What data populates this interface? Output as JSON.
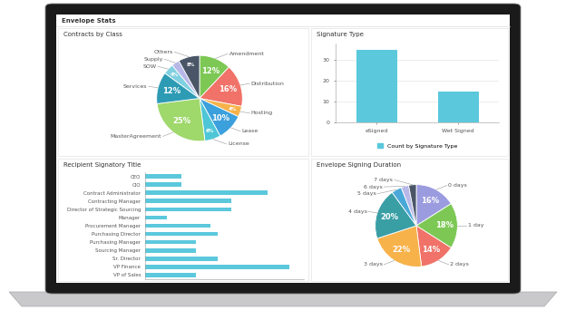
{
  "header": {
    "title": "Envelope Stats"
  },
  "chart_data": [
    {
      "type": "pie",
      "title": "Contracts by Class",
      "categories": [
        "Amendment",
        "Distribution",
        "Hosting",
        "Lease",
        "License",
        "MasterAgreement",
        "Services",
        "SOW",
        "Supply",
        "Others"
      ],
      "values": [
        12,
        16,
        4,
        10,
        6,
        25,
        12,
        4,
        3,
        8
      ],
      "value_labels": [
        "12%",
        "16%",
        "4%",
        "10%",
        "6%",
        "25%",
        "12%",
        "4%",
        null,
        "8%"
      ],
      "data_labels": true,
      "colors": [
        "#7dc855",
        "#f07268",
        "#f7b24a",
        "#3ca0dc",
        "#4ec6d6",
        "#9fd86b",
        "#2e9bb5",
        "#7fd0e0",
        "#b8b8e8",
        "#4a5568"
      ]
    },
    {
      "type": "bar",
      "title": "Signature Type",
      "categories": [
        "eSigned",
        "Wet Signed"
      ],
      "series": [
        {
          "name": "Count by Signature Type",
          "color": "#5bc8dc",
          "values": [
            35,
            15
          ]
        }
      ],
      "ylim": [
        0,
        38
      ],
      "yticks": [
        0,
        10,
        20,
        30
      ],
      "grid": true,
      "legend": "bottom"
    },
    {
      "type": "bar",
      "orientation": "horizontal",
      "title": "Recipient Signatory Title",
      "categories": [
        "CEO",
        "CIO",
        "Contract Administrator",
        "Contracting Manager",
        "Director of Strategic Sourcing",
        "Manager",
        "Procurement Manager",
        "Purchasing Director",
        "Purchasing Manager",
        "Sourcing Manager",
        "Sr. Director",
        "VP Finance",
        "VP of Sales"
      ],
      "values": [
        5,
        5,
        17,
        12,
        12,
        3,
        9,
        10,
        7,
        7,
        10,
        20,
        7
      ],
      "color": "#5bc8dc",
      "xlim": [
        0,
        22
      ],
      "tick_labels": "y"
    },
    {
      "type": "pie",
      "title": "Envelope Signing Duration",
      "categories": [
        "0 days",
        "1 day",
        "2 days",
        "3 days",
        "4 days",
        "5 days",
        "6 days",
        "7 days"
      ],
      "values": [
        16,
        18,
        14,
        22,
        20,
        4,
        3,
        3
      ],
      "value_labels": [
        "16%",
        "18%",
        "14%",
        "22%",
        "20%",
        null,
        null,
        null
      ],
      "data_labels": true,
      "colors": [
        "#9b9be0",
        "#7dc855",
        "#f07268",
        "#f7b24a",
        "#3a9ea5",
        "#4aa8d8",
        "#b8b8e8",
        "#4a5568"
      ]
    }
  ]
}
